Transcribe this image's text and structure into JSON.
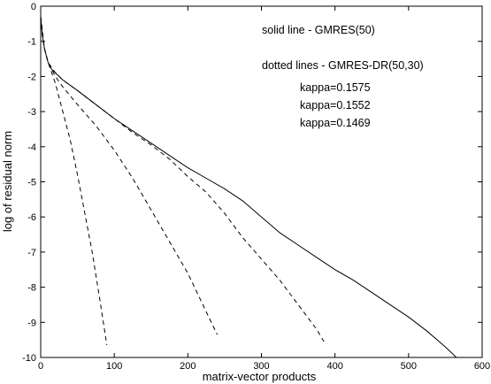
{
  "chart_data": {
    "type": "line",
    "xlabel": "matrix-vector products",
    "ylabel": "log of residual norm",
    "xlim": [
      0,
      600
    ],
    "ylim": [
      -10,
      0
    ],
    "xticks": [
      0,
      100,
      200,
      300,
      400,
      500,
      600
    ],
    "yticks": [
      0,
      -1,
      -2,
      -3,
      -4,
      -5,
      -6,
      -7,
      -8,
      -9,
      -10
    ],
    "grid": false,
    "annotations": [
      "solid line - GMRES(50)",
      "dotted lines - GMRES-DR(50,30)",
      "kappa=0.1575",
      "kappa=0.1552",
      "kappa=0.1469"
    ],
    "series": [
      {
        "style": "solid",
        "x": [
          0,
          2,
          5,
          10,
          15,
          20,
          30,
          50,
          75,
          100,
          125,
          150,
          175,
          200,
          225,
          250,
          275,
          300,
          325,
          350,
          375,
          400,
          425,
          450,
          475,
          500,
          525,
          550,
          565
        ],
        "y": [
          -0.3,
          -0.8,
          -1.2,
          -1.6,
          -1.8,
          -1.9,
          -2.1,
          -2.4,
          -2.8,
          -3.2,
          -3.55,
          -3.9,
          -4.25,
          -4.6,
          -4.9,
          -5.2,
          -5.55,
          -6.0,
          -6.45,
          -6.8,
          -7.15,
          -7.5,
          -7.8,
          -8.15,
          -8.5,
          -8.85,
          -9.25,
          -9.7,
          -10.0
        ]
      },
      {
        "style": "dashed",
        "x": [
          0,
          2,
          5,
          10,
          15,
          20,
          25,
          30,
          40,
          50,
          60,
          70,
          80,
          90
        ],
        "y": [
          -0.3,
          -0.8,
          -1.2,
          -1.6,
          -1.9,
          -2.2,
          -2.6,
          -3.0,
          -3.8,
          -4.8,
          -5.9,
          -7.0,
          -8.3,
          -9.65
        ]
      },
      {
        "style": "dashed",
        "x": [
          0,
          5,
          10,
          20,
          30,
          50,
          75,
          100,
          125,
          150,
          175,
          200,
          225,
          240
        ],
        "y": [
          -0.3,
          -1.2,
          -1.6,
          -2.0,
          -2.3,
          -2.8,
          -3.4,
          -4.1,
          -4.9,
          -5.8,
          -6.7,
          -7.6,
          -8.7,
          -9.35
        ]
      },
      {
        "style": "dashed",
        "x": [
          0,
          5,
          10,
          20,
          30,
          50,
          75,
          100,
          125,
          150,
          175,
          200,
          225,
          250,
          275,
          300,
          325,
          350,
          375,
          385
        ],
        "y": [
          -0.3,
          -1.2,
          -1.6,
          -1.9,
          -2.1,
          -2.4,
          -2.8,
          -3.2,
          -3.6,
          -3.95,
          -4.35,
          -4.85,
          -5.3,
          -5.9,
          -6.6,
          -7.2,
          -7.8,
          -8.5,
          -9.2,
          -9.55
        ]
      }
    ]
  }
}
